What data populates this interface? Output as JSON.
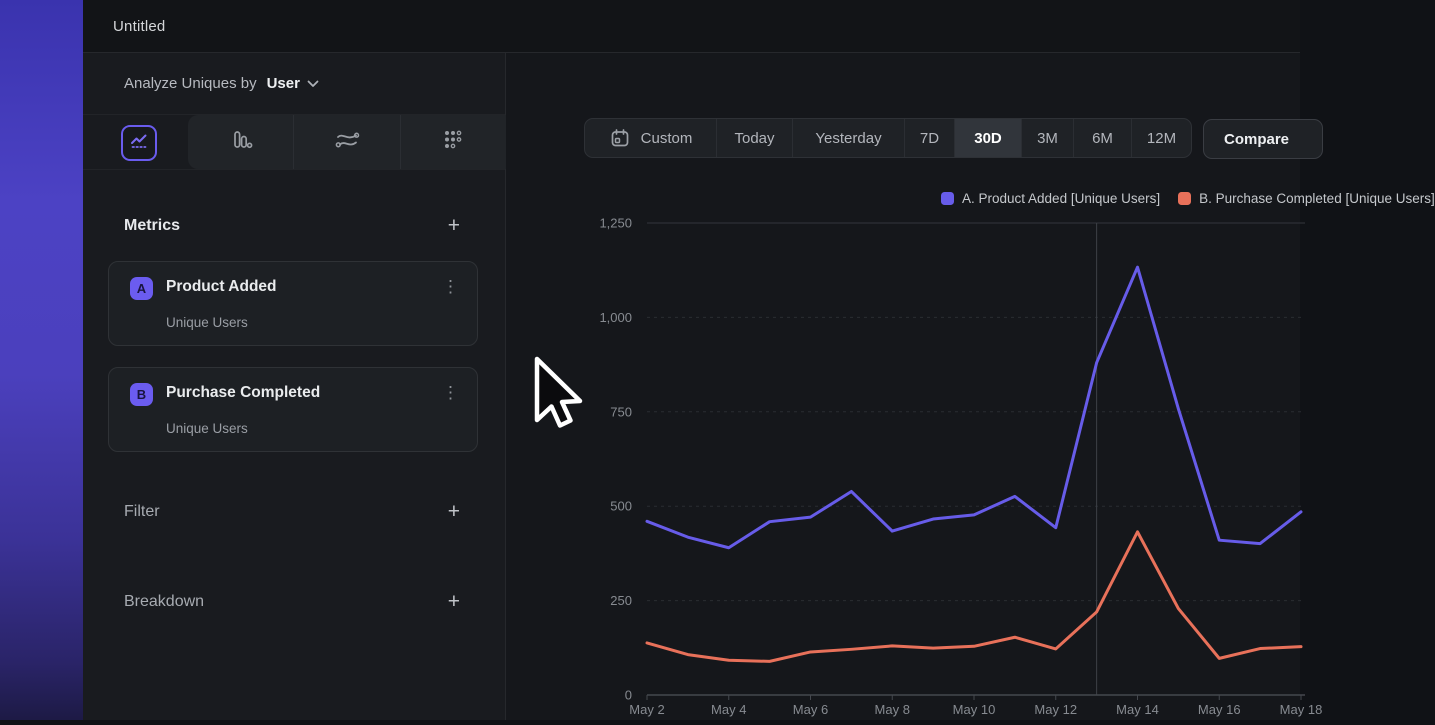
{
  "window": {
    "title": "Untitled"
  },
  "sidebar": {
    "analyze_label": "Analyze Uniques by",
    "analyze_value": "User",
    "chart_type_tabs": [
      "line-chart",
      "bar-chart",
      "flow",
      "dots-grid"
    ],
    "selected_chart_type": "line-chart",
    "metrics": {
      "title": "Metrics",
      "items": [
        {
          "badge": "A",
          "name": "Product Added",
          "sub": "Unique Users"
        },
        {
          "badge": "B",
          "name": "Purchase Completed",
          "sub": "Unique Users"
        }
      ]
    },
    "sections": [
      {
        "label": "Filter"
      },
      {
        "label": "Breakdown"
      }
    ]
  },
  "toolbar": {
    "ranges": [
      "Custom",
      "Today",
      "Yesterday",
      "7D",
      "30D",
      "3M",
      "6M",
      "12M"
    ],
    "selected_range": "30D",
    "compare_label": "Compare"
  },
  "icons": {
    "add": "+",
    "kebab": "⋮"
  },
  "colors": {
    "accent_purple": "#675CE9",
    "accent_orange": "#E8715A",
    "sidebar_bg": "#191B1F",
    "main_bg": "#15171B"
  },
  "legend": [
    {
      "label": "A. Product Added [Unique Users]",
      "color": "#675CE9"
    },
    {
      "label": "B. Purchase Completed [Unique Users]",
      "color": "#E8715A"
    }
  ],
  "chart_data": {
    "type": "line",
    "title": "",
    "xlabel": "",
    "ylabel": "",
    "x": [
      "May 2",
      "May 3",
      "May 4",
      "May 5",
      "May 6",
      "May 7",
      "May 8",
      "May 9",
      "May 10",
      "May 11",
      "May 12",
      "May 13",
      "May 14",
      "May 15",
      "May 16",
      "May 17",
      "May 18"
    ],
    "x_tick_labels_shown": [
      "May 2",
      "May 4",
      "May 6",
      "May 8",
      "May 10",
      "May 12",
      "May 14",
      "May 16",
      "May 18"
    ],
    "series": [
      {
        "name": "A. Product Added [Unique Users]",
        "color": "#675CE9",
        "values": [
          460,
          418,
          390,
          459,
          471,
          539,
          434,
          466,
          477,
          526,
          443,
          880,
          1133,
          758,
          410,
          401,
          485
        ]
      },
      {
        "name": "B. Purchase Completed [Unique Users]",
        "color": "#E8715A",
        "values": [
          138,
          107,
          92,
          89,
          114,
          121,
          130,
          124,
          129,
          153,
          122,
          220,
          432,
          229,
          97,
          123,
          128
        ]
      }
    ],
    "ylim": [
      0,
      1250
    ],
    "yticks": [
      0,
      250,
      500,
      750,
      1000,
      1250
    ],
    "ytick_labels": [
      "0",
      "250",
      "500",
      "750",
      "1,000",
      "1,250"
    ],
    "grid": "horizontal-dashed",
    "vline_x": "May 13",
    "legend_position": "top-right"
  }
}
